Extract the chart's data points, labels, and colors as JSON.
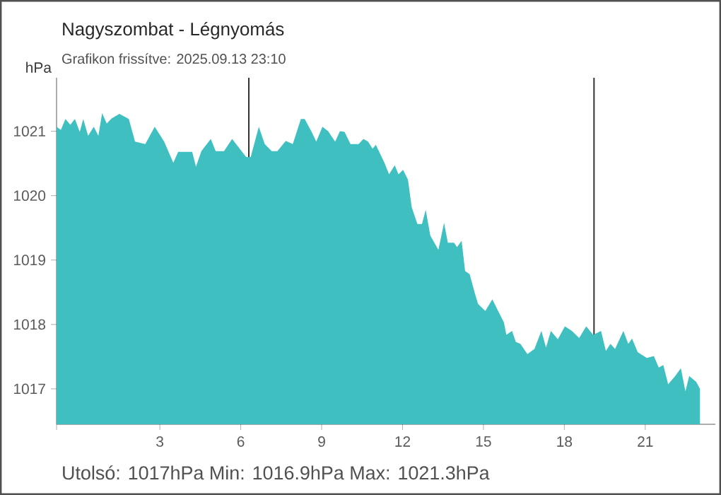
{
  "chart_data": {
    "type": "area",
    "title": "Nagyszombat - Légnyomás",
    "subtitle": "Grafikon frissítve: 2025.09.13 23:10",
    "ylabel": "hPa",
    "annotations": [
      "Utolsó: 1017hPa  Min: 1016.9hPa  Max: 1021.3hPa"
    ],
    "x": [
      -0.83,
      -0.67,
      -0.5,
      -0.32,
      -0.15,
      0.03,
      0.16,
      0.34,
      0.55,
      0.72,
      0.86,
      1.03,
      1.21,
      1.5,
      1.85,
      2.08,
      2.46,
      2.81,
      3.16,
      3.5,
      3.68,
      4.2,
      4.34,
      4.54,
      4.89,
      5.07,
      5.38,
      5.68,
      6.2,
      6.37,
      6.67,
      6.89,
      7.15,
      7.36,
      7.67,
      7.93,
      8.23,
      8.37,
      8.63,
      8.8,
      9.03,
      9.24,
      9.5,
      9.68,
      9.85,
      10.07,
      10.37,
      10.55,
      10.72,
      10.89,
      11.01,
      11.33,
      11.5,
      11.71,
      11.85,
      12.02,
      12.2,
      12.34,
      12.55,
      12.72,
      12.86,
      13.03,
      13.33,
      13.54,
      13.68,
      13.91,
      14.02,
      14.19,
      14.32,
      14.49,
      14.67,
      14.8,
      15.07,
      15.33,
      15.59,
      15.76,
      15.85,
      16.06,
      16.2,
      16.37,
      16.63,
      16.89,
      17.15,
      17.32,
      17.5,
      17.76,
      18.02,
      18.28,
      18.55,
      18.81,
      19.07,
      19.36,
      19.54,
      19.71,
      19.88,
      20.19,
      20.37,
      20.51,
      20.72,
      21.06,
      21.32,
      21.5,
      21.67,
      21.85,
      22.11,
      22.32,
      22.49,
      22.63,
      22.89,
      23.03
    ],
    "series": [
      {
        "color": "#40bfc1",
        "values": [
          1021.07,
          1021.02,
          1021.19,
          1021.1,
          1021.19,
          1020.99,
          1021.19,
          1020.93,
          1021.07,
          1020.93,
          1021.28,
          1021.12,
          1021.2,
          1021.27,
          1021.19,
          1020.84,
          1020.8,
          1021.07,
          1020.84,
          1020.51,
          1020.68,
          1020.68,
          1020.45,
          1020.69,
          1020.88,
          1020.69,
          1020.69,
          1020.88,
          1020.6,
          1020.6,
          1021.07,
          1020.8,
          1020.69,
          1020.69,
          1020.85,
          1020.8,
          1021.19,
          1021.19,
          1020.99,
          1020.84,
          1021.07,
          1021.0,
          1020.84,
          1021.0,
          1020.99,
          1020.8,
          1020.8,
          1020.88,
          1020.84,
          1020.73,
          1020.79,
          1020.51,
          1020.33,
          1020.47,
          1020.33,
          1020.4,
          1020.25,
          1019.82,
          1019.56,
          1019.56,
          1019.78,
          1019.38,
          1019.16,
          1019.58,
          1019.27,
          1019.27,
          1019.2,
          1019.3,
          1018.83,
          1018.78,
          1018.5,
          1018.32,
          1018.21,
          1018.39,
          1018.17,
          1018.03,
          1017.84,
          1017.9,
          1017.73,
          1017.7,
          1017.54,
          1017.62,
          1017.9,
          1017.64,
          1017.9,
          1017.77,
          1017.97,
          1017.9,
          1017.79,
          1017.97,
          1017.84,
          1017.9,
          1017.59,
          1017.7,
          1017.62,
          1017.9,
          1017.7,
          1017.78,
          1017.57,
          1017.48,
          1017.51,
          1017.33,
          1017.37,
          1017.07,
          1017.2,
          1017.32,
          1016.96,
          1017.2,
          1017.11,
          1017.0
        ]
      }
    ],
    "xlim": [
      -0.83,
      23.6
    ],
    "ylim": [
      1016.45,
      1021.83
    ],
    "xticks": [
      {
        "value": -0.83,
        "label": null
      },
      3,
      6,
      9,
      12,
      15,
      18,
      21
    ],
    "yticks": [
      1017,
      1018,
      1019,
      1020,
      1021
    ],
    "ref_lines": [
      {
        "axis": "x",
        "value": 6.3,
        "color": "#333333"
      },
      {
        "axis": "x",
        "value": 19.1,
        "color": "#333333"
      }
    ],
    "tick_labels": "xy"
  }
}
